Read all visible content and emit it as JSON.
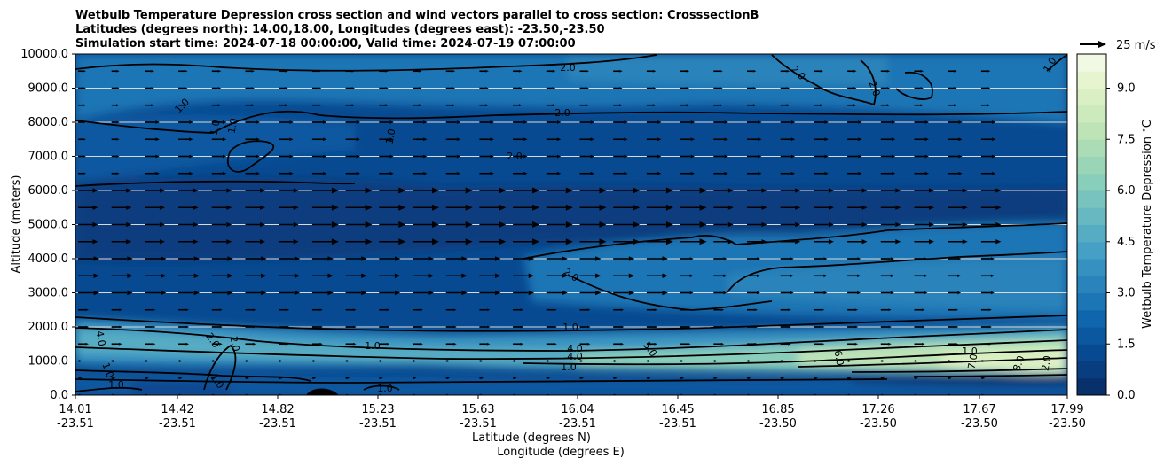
{
  "chart_data": {
    "type": "contour",
    "title": [
      "Wetbulb Temperature Depression cross section and wind vectors parallel to cross section: CrosssectionB",
      "Latitudes (degrees north): 14.00,18.00, Longitudes (degrees east): -23.50,-23.50",
      "Simulation start time: 2024-07-18 00:00:00, Valid time: 2024-07-19 07:00:00"
    ],
    "xlabel": "Latitude (degrees N)",
    "xlabel2": "Longitude (degrees E)",
    "ylabel": "Altitude (meters)",
    "xticks": [
      {
        "lat": "14.01",
        "lon": "-23.51"
      },
      {
        "lat": "14.42",
        "lon": "-23.51"
      },
      {
        "lat": "14.82",
        "lon": "-23.51"
      },
      {
        "lat": "15.23",
        "lon": "-23.51"
      },
      {
        "lat": "15.63",
        "lon": "-23.51"
      },
      {
        "lat": "16.04",
        "lon": "-23.51"
      },
      {
        "lat": "16.45",
        "lon": "-23.51"
      },
      {
        "lat": "16.85",
        "lon": "-23.50"
      },
      {
        "lat": "17.26",
        "lon": "-23.50"
      },
      {
        "lat": "17.67",
        "lon": "-23.50"
      },
      {
        "lat": "17.99",
        "lon": "-23.50"
      }
    ],
    "yticks": [
      "0.0",
      "1000.0",
      "2000.0",
      "3000.0",
      "4000.0",
      "5000.0",
      "6000.0",
      "7000.0",
      "8000.0",
      "9000.0",
      "10000.0"
    ],
    "ylim": [
      0,
      10000
    ],
    "grid": "horizontal",
    "colorbar": {
      "label": "Wetbulb Temperature Depression $^\\circ$C",
      "range": [
        0,
        10
      ],
      "ticks": [
        "0.0",
        "1.5",
        "3.0",
        "4.5",
        "6.0",
        "7.5",
        "9.0"
      ],
      "colors": [
        "#08306b",
        "#083d7f",
        "#084a91",
        "#0b58a0",
        "#1066ad",
        "#1c75b4",
        "#2a83ba",
        "#3791c0",
        "#469fc4",
        "#56acc3",
        "#67b8c1",
        "#78c3be",
        "#89cdbb",
        "#9bd5b8",
        "#acdcb6",
        "#bde3b7",
        "#cceabc",
        "#daf0c4",
        "#e6f5d0",
        "#f1f9e4"
      ]
    },
    "wind_key": {
      "label": "25 m/s",
      "speed": 25
    },
    "contour_labels": [
      "2.0",
      "1.0",
      "2.0",
      "1.0",
      "1.0",
      "1.0",
      "2.0",
      "2.0",
      "1.0",
      "2.0",
      "1.0",
      "4.0",
      "2.0",
      "2.0",
      "4.0",
      "4.0",
      "5.0",
      "6.0",
      "7.0",
      "8.0",
      "1.0",
      "1.0",
      "1.0",
      "1.0",
      "1.0",
      "1.0",
      "2.0",
      "2.0",
      "1.0"
    ],
    "contour_levels": [
      1,
      2,
      4,
      5,
      6,
      7,
      8
    ],
    "wind_vectors": "arrows pointing east; strongest (~25 m/s) at 4500-6000 m between 15.0 and 16.5 N; weak near surface"
  }
}
